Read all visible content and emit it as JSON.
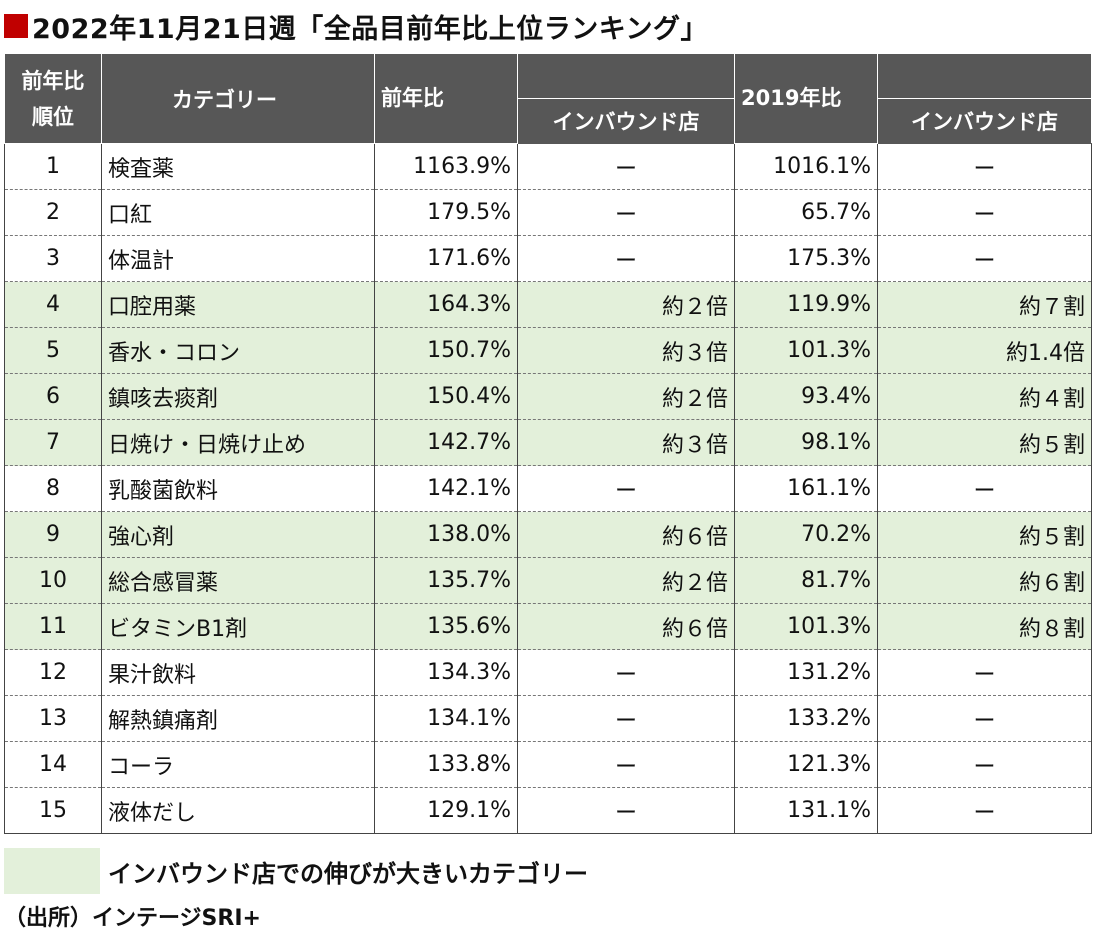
{
  "title": "2022年11月21日週「全品目前年比上位ランキング」",
  "headers": {
    "rank": [
      "前年比",
      "順位"
    ],
    "category": "カテゴリー",
    "yoy": "前年比",
    "inbound": "インバウンド店",
    "vs2019": "2019年比",
    "inbound2019": "インバウンド店"
  },
  "rows": [
    {
      "rank": "1",
      "category": "検査薬",
      "yoy": "1163.9%",
      "yoy_inbound": "ー",
      "vs2019": "1016.1%",
      "vs2019_inbound": "ー",
      "highlight": false
    },
    {
      "rank": "2",
      "category": "口紅",
      "yoy": "179.5%",
      "yoy_inbound": "ー",
      "vs2019": "65.7%",
      "vs2019_inbound": "ー",
      "highlight": false
    },
    {
      "rank": "3",
      "category": "体温計",
      "yoy": "171.6%",
      "yoy_inbound": "ー",
      "vs2019": "175.3%",
      "vs2019_inbound": "ー",
      "highlight": false
    },
    {
      "rank": "4",
      "category": "口腔用薬",
      "yoy": "164.3%",
      "yoy_inbound": "約２倍",
      "vs2019": "119.9%",
      "vs2019_inbound": "約７割",
      "highlight": true
    },
    {
      "rank": "5",
      "category": "香水・コロン",
      "yoy": "150.7%",
      "yoy_inbound": "約３倍",
      "vs2019": "101.3%",
      "vs2019_inbound": "約1.4倍",
      "highlight": true
    },
    {
      "rank": "6",
      "category": "鎮咳去痰剤",
      "yoy": "150.4%",
      "yoy_inbound": "約２倍",
      "vs2019": "93.4%",
      "vs2019_inbound": "約４割",
      "highlight": true
    },
    {
      "rank": "7",
      "category": "日焼け・日焼け止め",
      "yoy": "142.7%",
      "yoy_inbound": "約３倍",
      "vs2019": "98.1%",
      "vs2019_inbound": "約５割",
      "highlight": true
    },
    {
      "rank": "8",
      "category": "乳酸菌飲料",
      "yoy": "142.1%",
      "yoy_inbound": "ー",
      "vs2019": "161.1%",
      "vs2019_inbound": "ー",
      "highlight": false
    },
    {
      "rank": "9",
      "category": "強心剤",
      "yoy": "138.0%",
      "yoy_inbound": "約６倍",
      "vs2019": "70.2%",
      "vs2019_inbound": "約５割",
      "highlight": true
    },
    {
      "rank": "10",
      "category": "総合感冒薬",
      "yoy": "135.7%",
      "yoy_inbound": "約２倍",
      "vs2019": "81.7%",
      "vs2019_inbound": "約６割",
      "highlight": true
    },
    {
      "rank": "11",
      "category": "ビタミンB1剤",
      "yoy": "135.6%",
      "yoy_inbound": "約６倍",
      "vs2019": "101.3%",
      "vs2019_inbound": "約８割",
      "highlight": true
    },
    {
      "rank": "12",
      "category": "果汁飲料",
      "yoy": "134.3%",
      "yoy_inbound": "ー",
      "vs2019": "131.2%",
      "vs2019_inbound": "ー",
      "highlight": false
    },
    {
      "rank": "13",
      "category": "解熱鎮痛剤",
      "yoy": "134.1%",
      "yoy_inbound": "ー",
      "vs2019": "133.2%",
      "vs2019_inbound": "ー",
      "highlight": false
    },
    {
      "rank": "14",
      "category": "コーラ",
      "yoy": "133.8%",
      "yoy_inbound": "ー",
      "vs2019": "121.3%",
      "vs2019_inbound": "ー",
      "highlight": false
    },
    {
      "rank": "15",
      "category": "液体だし",
      "yoy": "129.1%",
      "yoy_inbound": "ー",
      "vs2019": "131.1%",
      "vs2019_inbound": "ー",
      "highlight": false
    }
  ],
  "legend": "インバウンド店での伸びが大きいカテゴリー",
  "source": "（出所）インテージSRI+",
  "colors": {
    "accent": "#c00000",
    "header_bg": "#575757",
    "highlight_bg": "#e3f0da"
  }
}
